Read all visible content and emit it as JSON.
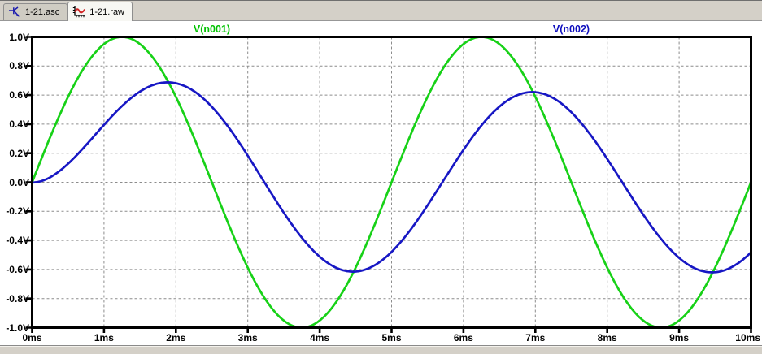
{
  "tabs": [
    {
      "label": "1-21.asc",
      "icon": "schematic-icon",
      "active": false
    },
    {
      "label": "1-21.raw",
      "icon": "waveform-icon",
      "active": true
    }
  ],
  "colors": {
    "chrome": "#d4d0c8",
    "plot_background": "#ffffff",
    "grid": "#8c8c8c",
    "axis": "#000000",
    "trace1": "#17d117",
    "trace2": "#1717c4",
    "legend1": "#00c200",
    "legend2": "#0d0dbe"
  },
  "chart_data": {
    "type": "line",
    "title": "",
    "xlabel": "",
    "ylabel": "",
    "x_tick_labels": [
      "0ms",
      "1ms",
      "2ms",
      "3ms",
      "4ms",
      "5ms",
      "6ms",
      "7ms",
      "8ms",
      "9ms",
      "10ms"
    ],
    "y_tick_labels": [
      "1.0V",
      "0.8V",
      "0.6V",
      "0.4V",
      "0.2V",
      "0.0V",
      "-0.2V",
      "-0.4V",
      "-0.6V",
      "-0.8V",
      "-1.0V"
    ],
    "xlim_ms": [
      0,
      10
    ],
    "ylim_v": [
      -1.0,
      1.0
    ],
    "grid": "dashed",
    "legend_position": "top-inside",
    "series": [
      {
        "name": "V(n001)",
        "color": "#17d117",
        "waveform": "sine",
        "amplitude_v": 1.0,
        "period_ms": 5.0,
        "frequency_hz": 200,
        "phase_deg": 0,
        "offset_v": 0,
        "transient": null,
        "samples_t_ms": [
          0,
          0.5,
          1,
          1.5,
          2,
          2.5,
          3,
          3.5,
          4,
          4.5,
          5,
          5.5,
          6,
          6.5,
          7,
          7.5,
          8,
          8.5,
          9,
          9.5,
          10
        ],
        "samples_v": [
          0.0,
          0.59,
          0.95,
          0.95,
          0.59,
          0.0,
          -0.59,
          -0.95,
          -0.95,
          -0.59,
          0.0,
          0.59,
          0.95,
          0.95,
          0.59,
          0.0,
          -0.59,
          -0.95,
          -0.95,
          -0.59,
          0.0
        ]
      },
      {
        "name": "V(n002)",
        "color": "#1717c4",
        "waveform": "sine-with-decaying-transient",
        "amplitude_v": 0.62,
        "period_ms": 5.0,
        "frequency_hz": 200,
        "phase_deg": -51,
        "offset_v": 0,
        "transient": {
          "amplitude_v": 0.48,
          "tau_ms": 0.98
        },
        "samples_t_ms": [
          0,
          0.5,
          1,
          1.5,
          2,
          2.5,
          3,
          3.5,
          4,
          4.5,
          5,
          5.5,
          6,
          6.5,
          7,
          7.5,
          8,
          8.5,
          9,
          9.5,
          10
        ],
        "samples_v": [
          0.0,
          0.13,
          0.4,
          0.62,
          0.68,
          0.52,
          0.18,
          -0.21,
          -0.51,
          -0.61,
          -0.48,
          -0.16,
          0.22,
          0.52,
          0.62,
          0.48,
          0.16,
          -0.22,
          -0.52,
          -0.62,
          -0.48
        ]
      }
    ]
  }
}
